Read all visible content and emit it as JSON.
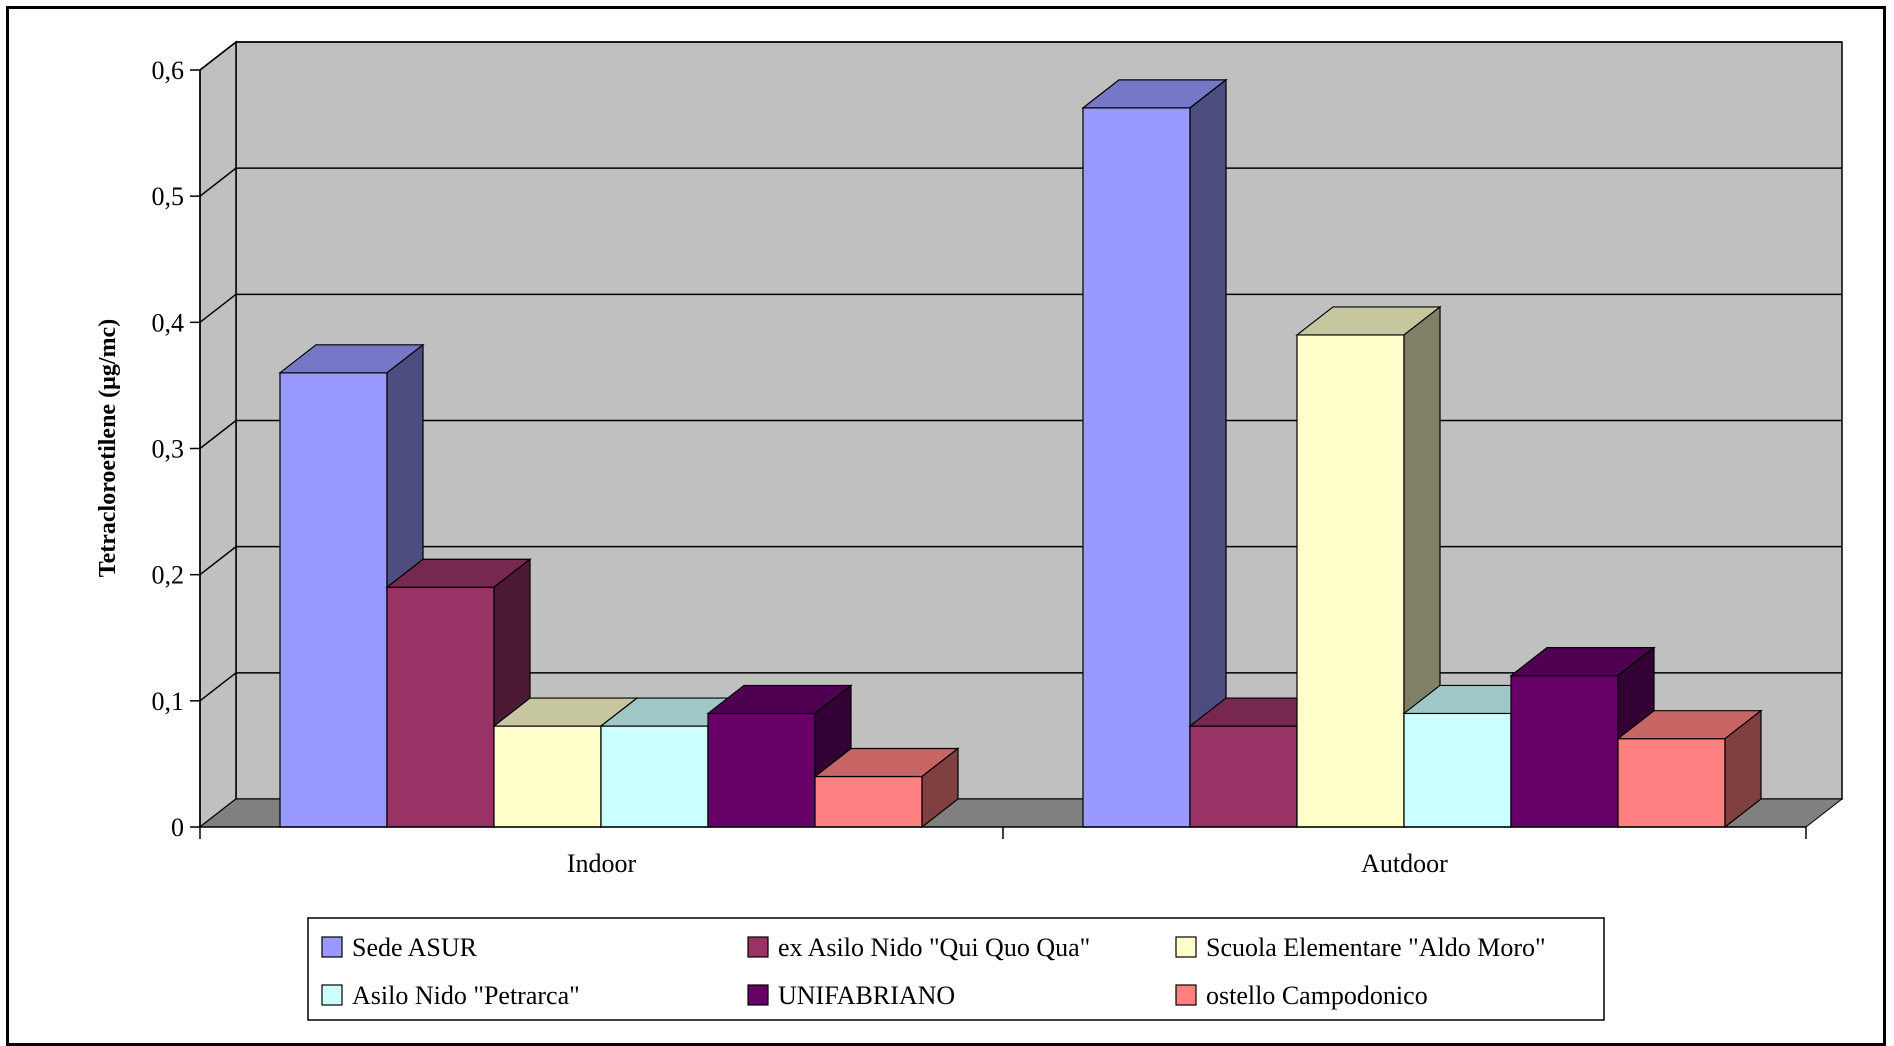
{
  "chart_data": {
    "type": "bar",
    "title": "",
    "xlabel": "",
    "ylabel": "Tetracloroetilene (µg/mc)",
    "categories": [
      "Indoor",
      "Autdoor"
    ],
    "y_ticks": [
      "0",
      "0,1",
      "0,2",
      "0,3",
      "0,4",
      "0,5",
      "0,6"
    ],
    "ylim": [
      0,
      0.6
    ],
    "grid": true,
    "style": "3d-clustered-column",
    "legend_position": "bottom",
    "series": [
      {
        "name": "Sede ASUR",
        "values": [
          0.36,
          0.57
        ],
        "color": "#9999ff"
      },
      {
        "name": "ex Asilo Nido \"Qui Quo Qua\"",
        "values": [
          0.19,
          0.08
        ],
        "color": "#993366"
      },
      {
        "name": "Scuola Elementare \"Aldo Moro\"",
        "values": [
          0.08,
          0.39
        ],
        "color": "#ffffcc"
      },
      {
        "name": "Asilo Nido \"Petrarca\"",
        "values": [
          0.08,
          0.09
        ],
        "color": "#ccffff"
      },
      {
        "name": "UNIFABRIANO",
        "values": [
          0.09,
          0.12
        ],
        "color": "#660066"
      },
      {
        "name": "ostello Campodonico",
        "values": [
          0.04,
          0.07
        ],
        "color": "#ff8080"
      }
    ]
  }
}
